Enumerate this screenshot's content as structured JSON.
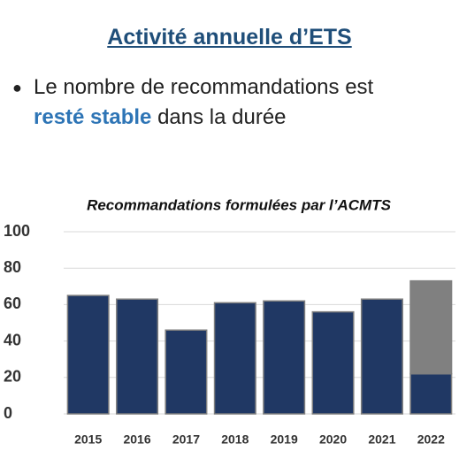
{
  "header": {
    "title": "Activité annuelle d’ETS"
  },
  "bullet": {
    "before": "Le nombre de recommandations est",
    "highlight": "resté stable",
    "after": "dans la durée"
  },
  "chart_data": {
    "type": "bar",
    "stacked": true,
    "title": "Recommandations formulées par l’ACMTS",
    "categories": [
      "2015",
      "2016",
      "2017",
      "2018",
      "2019",
      "2020",
      "2021",
      "2022"
    ],
    "series": [
      {
        "color": "#203864",
        "values": [
          65,
          63,
          46,
          61,
          62,
          56,
          63,
          22
        ]
      },
      {
        "color": "#808080",
        "values": [
          null,
          null,
          null,
          null,
          null,
          null,
          null,
          51
        ]
      }
    ],
    "ylim": [
      0,
      100
    ],
    "yticks": [
      0,
      20,
      40,
      60,
      80,
      100
    ],
    "grid": true
  }
}
